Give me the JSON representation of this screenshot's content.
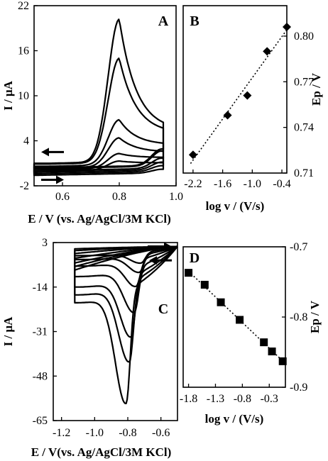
{
  "chart_data": [
    {
      "id": "A",
      "type": "line",
      "panel_label": "A",
      "xlabel": "E / V (vs. Ag/AgCl/3M KCl)",
      "ylabel": "I / μA",
      "xlim": [
        0.5,
        1.0
      ],
      "ylim": [
        -2,
        22
      ],
      "xticks": [
        0.6,
        0.8,
        1.0
      ],
      "yticks": [
        -2,
        4,
        10,
        16,
        22
      ],
      "curves": [
        {
          "peak": 20.0,
          "base": 1.0,
          "plateau": 5.0
        },
        {
          "peak": 14.8,
          "base": 0.9,
          "plateau": 4.6
        },
        {
          "peak": 6.6,
          "base": 0.6,
          "plateau": 3.1
        },
        {
          "peak": 4.3,
          "base": 0.4,
          "plateau": 2.3
        },
        {
          "peak": 2.2,
          "base": 0.2,
          "plateau": 1.6
        },
        {
          "peak": 1.2,
          "base": 0.0,
          "plateau": 0.9
        }
      ],
      "peak_potential": 0.8,
      "arrows": [
        "backward scan (top-left)",
        "forward scan (bottom-left)"
      ]
    },
    {
      "id": "B",
      "type": "scatter",
      "panel_label": "B",
      "xlabel": "log v / (V/s)",
      "ylabel": "Ep / V",
      "xlim": [
        -2.4,
        -0.3
      ],
      "ylim": [
        0.71,
        0.82
      ],
      "xticks": [
        -2.2,
        -1.6,
        -1.0,
        -0.4
      ],
      "yticks": [
        0.71,
        0.74,
        0.77,
        0.8
      ],
      "x": [
        -2.2,
        -1.5,
        -1.1,
        -0.7,
        -0.3
      ],
      "y": [
        0.722,
        0.748,
        0.761,
        0.79,
        0.806
      ],
      "marker": "diamond",
      "fit_line": "dotted"
    },
    {
      "id": "C",
      "type": "line",
      "panel_label": "C",
      "xlabel": "E / V(vs. Ag/AgCl/3M KCl)",
      "ylabel": "I / μA",
      "xlim": [
        -1.25,
        -0.5
      ],
      "ylim": [
        -65,
        3
      ],
      "xticks": [
        -1.2,
        -1.0,
        -0.8,
        -0.6
      ],
      "yticks": [
        3,
        -14,
        -31,
        -48,
        -65
      ],
      "curves": [
        {
          "peak_E": -0.81,
          "peak": -63.0,
          "base": -20.0
        },
        {
          "peak_E": -0.79,
          "peak": -47.0,
          "base": -17.0
        },
        {
          "peak_E": -0.78,
          "peak": -37.0,
          "base": -14.0
        },
        {
          "peak_E": -0.76,
          "peak": -27.0,
          "base": -10.0
        },
        {
          "peak_E": -0.75,
          "peak": -16.0,
          "base": -6.0
        },
        {
          "peak_E": -0.73,
          "peak": -10.0,
          "base": -3.5
        },
        {
          "peak_E": -0.72,
          "peak": -6.0,
          "base": -2.0
        }
      ],
      "arrows": [
        "forward scan (top-right)",
        "backward scan (right)"
      ]
    },
    {
      "id": "D",
      "type": "scatter",
      "panel_label": "D",
      "xlabel": "log v / (V/s)",
      "ylabel": "Ep / V",
      "xlim": [
        -1.9,
        0.0
      ],
      "ylim": [
        -0.9,
        -0.7
      ],
      "xticks": [
        -1.8,
        -1.3,
        -0.8,
        -0.3
      ],
      "yticks": [
        -0.7,
        -0.8,
        -0.9
      ],
      "x": [
        -1.8,
        -1.5,
        -1.2,
        -0.85,
        -0.4,
        -0.25,
        -0.05
      ],
      "y": [
        -0.737,
        -0.754,
        -0.779,
        -0.804,
        -0.836,
        -0.849,
        -0.863
      ],
      "marker": "square",
      "fit_line": "dotted"
    }
  ]
}
